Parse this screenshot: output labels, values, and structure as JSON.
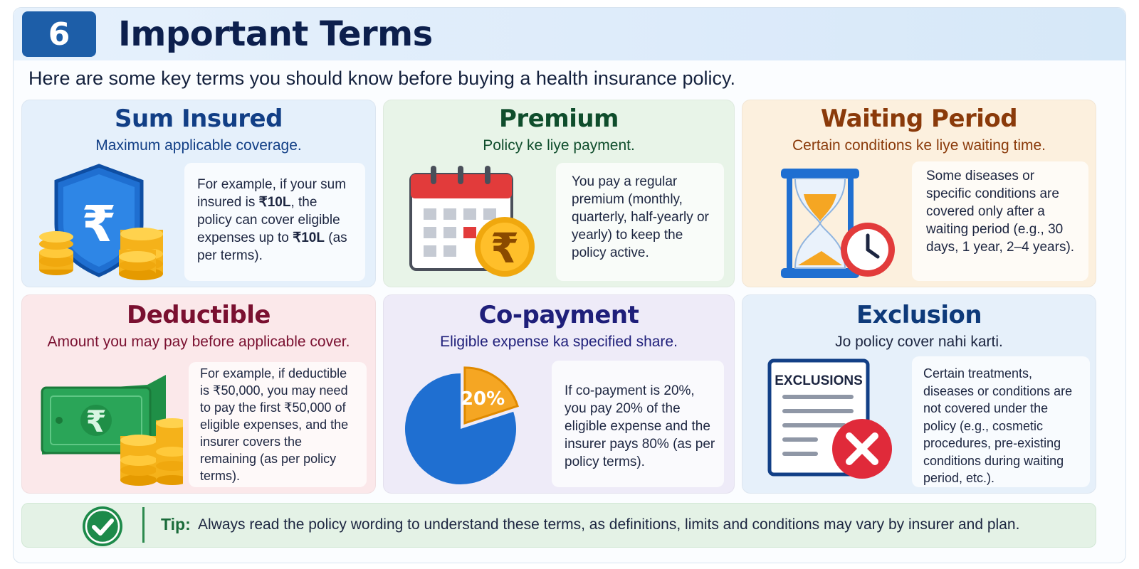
{
  "header": {
    "section_number": "6",
    "title": "Important Terms",
    "subtitle": "Here are some key terms you should know before buying a health insurance policy."
  },
  "cards": [
    {
      "title": "Sum Insured",
      "subtitle": "Maximum applicable coverage.",
      "description_parts": [
        "For example, if your sum insured is ",
        "₹10L",
        ", the policy can cover eligible expenses up to ",
        "₹10L",
        " (as per terms)."
      ],
      "icon": "shield-rupee-coins-icon",
      "color": "#123f86",
      "bg": "#e5f0fb"
    },
    {
      "title": "Premium",
      "subtitle": "Policy ke liye payment.",
      "description": "You pay a regular premium (monthly, quarterly, half-yearly or yearly) to keep the policy active.",
      "icon": "calendar-rupee-icon",
      "color": "#0f4d2c",
      "bg": "#e8f4e8"
    },
    {
      "title": "Waiting Period",
      "subtitle": "Certain conditions ke liye waiting time.",
      "description": "Some diseases or specific conditions are covered only after a waiting period (e.g., 30 days, 1 year, 2–4 years).",
      "icon": "hourglass-clock-icon",
      "color": "#8a3a0a",
      "bg": "#fcf0de"
    },
    {
      "title": "Deductible",
      "subtitle": "Amount you may pay before applicable cover.",
      "description": "For example, if deductible is ₹50,000, you may need to pay the first ₹50,000 of eligible expenses, and the insurer covers the remaining (as per policy terms).",
      "icon": "cash-coins-icon",
      "color": "#7a1030",
      "bg": "#fbe8ea"
    },
    {
      "title": "Co-payment",
      "subtitle": "Eligible expense ka specified share.",
      "description": "If co-payment is 20%, you pay 20% of the eligible expense and the insurer pays 80% (as per policy terms).",
      "icon": "pie-chart-icon",
      "pie_label": "20%",
      "pie_share": 0.2,
      "color": "#1f1f7a",
      "bg": "#eeebf8"
    },
    {
      "title": "Exclusion",
      "subtitle": "Jo policy cover nahi karti.",
      "description": "Certain treatments, diseases or conditions are not covered under the policy (e.g., cosmetic procedures, pre-existing conditions during waiting period, etc.).",
      "icon": "exclusions-document-icon",
      "doc_label": "EXCLUSIONS",
      "color": "#0e3a7a",
      "bg": "#e6f0fa"
    }
  ],
  "tip": {
    "label": "Tip:",
    "text": "Always read the policy wording to understand these terms, as definitions, limits and conditions may vary by insurer and plan."
  },
  "colors": {
    "header_badge": "#1d5ea8",
    "title": "#0c1f4d",
    "tip_green": "#1d8a4a"
  }
}
